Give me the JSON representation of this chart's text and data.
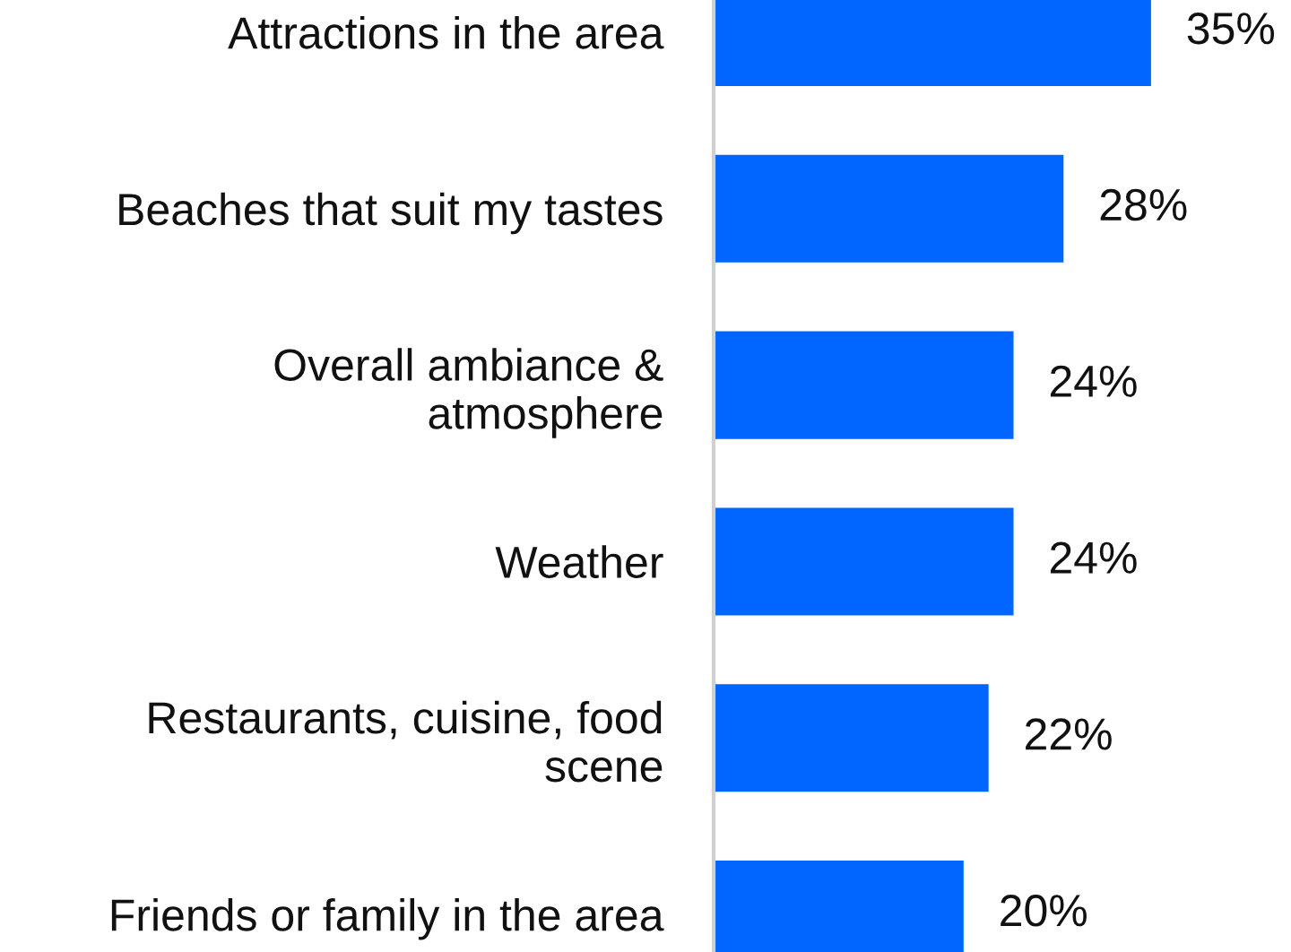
{
  "chart_data": {
    "type": "bar",
    "orientation": "horizontal",
    "categories": [
      "Attractions in the area",
      "Beaches that suit my tastes",
      "Overall ambiance &\natmosphere",
      "Weather",
      "Restaurants, cuisine, food\nscene",
      "Friends or family in the area"
    ],
    "values": [
      35,
      28,
      24,
      24,
      22,
      20
    ],
    "value_labels": [
      "35%",
      "28%",
      "24%",
      "24%",
      "22%",
      "20%"
    ],
    "color": "#0066ff",
    "grid": false,
    "legend": false
  }
}
